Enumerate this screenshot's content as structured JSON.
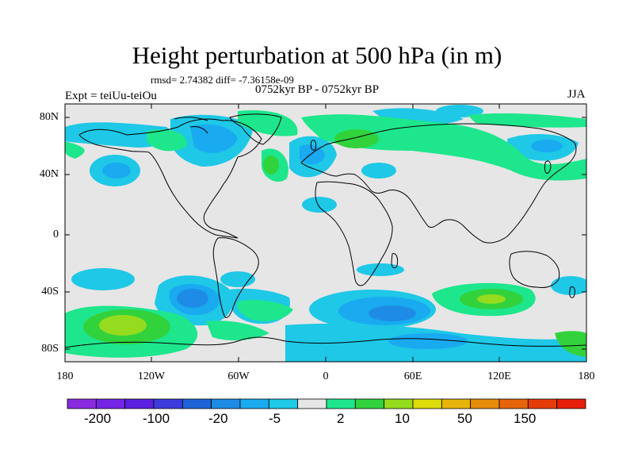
{
  "title": "Height perturbation at 500 hPa (in m)",
  "stats": "rmsd= 2.74382 diff= -7.36158e-09",
  "period": "0752kyr BP - 0752kyr BP",
  "experiment": "Expt = teiUu-teiOu",
  "season": "JJA",
  "lat_labels": [
    "80N",
    "40N",
    "0",
    "40S",
    "80S"
  ],
  "lon_labels": [
    "180",
    "120W",
    "60W",
    "0",
    "60E",
    "120E",
    "180"
  ],
  "colorbar": {
    "colors": [
      "#8a2be2",
      "#7425e6",
      "#5a1fe0",
      "#3c3cdc",
      "#1e64d8",
      "#1e8ce6",
      "#19aaf0",
      "#1ec8e6",
      "#e6e6e6",
      "#1ee68c",
      "#32d23c",
      "#96dc1e",
      "#dcdc0a",
      "#e6b40a",
      "#e68c0a",
      "#e6640a",
      "#e63c0a",
      "#e61e0a"
    ],
    "labels": [
      "-200",
      "-100",
      "-20",
      "-5",
      "2",
      "10",
      "50",
      "150"
    ]
  },
  "legend_colors": {
    "background": "#e6e6e6",
    "neg_light": "#1ec8e6",
    "neg_mid": "#19aaf0",
    "neg_strong": "#1e8ce6",
    "pos_light": "#1ee68c",
    "pos_mid": "#32d23c",
    "pos_strong": "#96dc1e",
    "pos_peak": "#dcdc0a"
  }
}
